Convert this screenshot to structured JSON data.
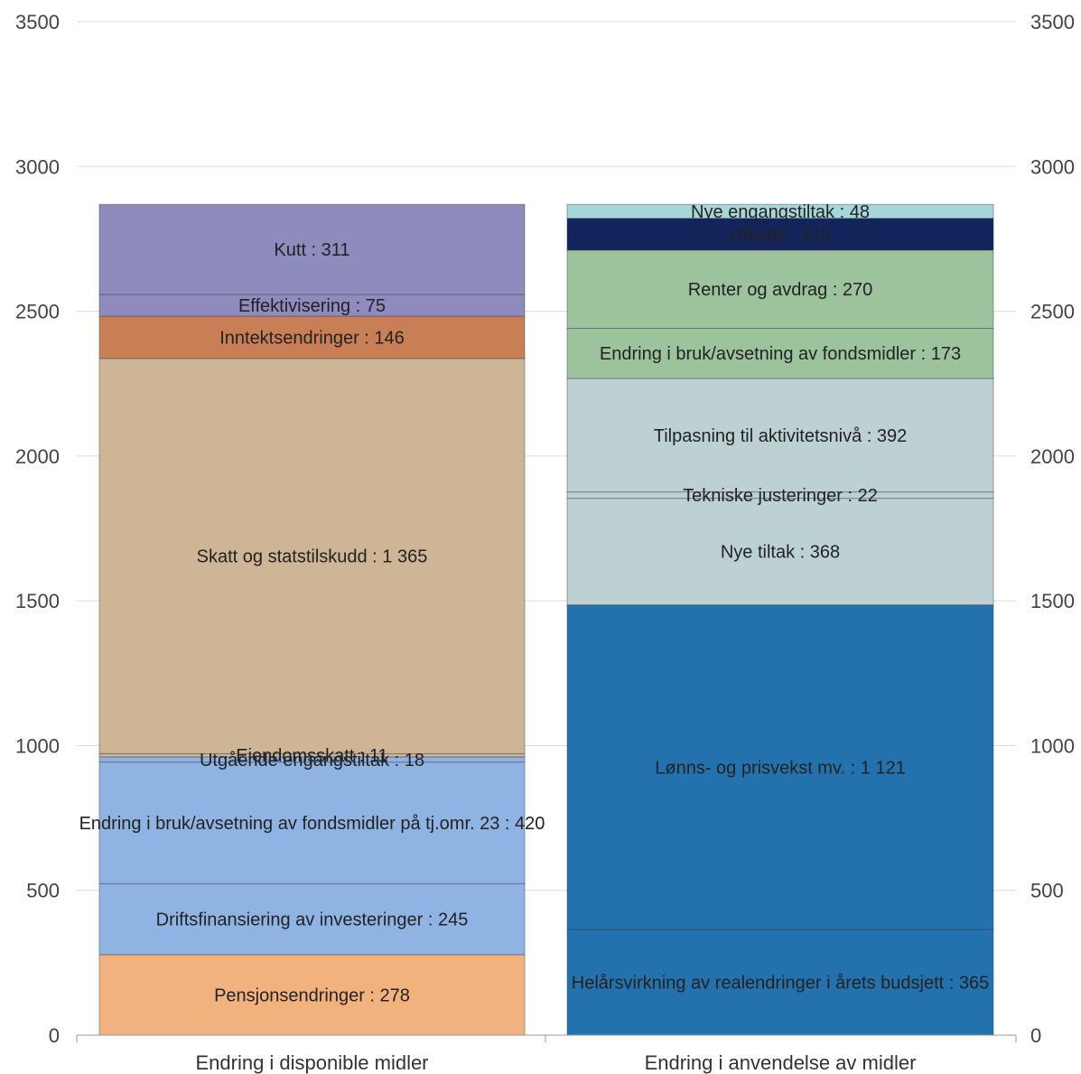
{
  "chart_data": {
    "type": "bar",
    "stacked": true,
    "ylim": [
      0,
      3500
    ],
    "yticks": [
      0,
      500,
      1000,
      1500,
      2000,
      2500,
      3000,
      3500
    ],
    "yaxis_left": true,
    "yaxis_right": true,
    "grid": true,
    "categories": [
      "Endring i disponible midler",
      "Endring i anvendelse av midler"
    ],
    "stacks": [
      {
        "category": "Endring i disponible midler",
        "segments": [
          {
            "label": "Pensjonsendringer : 278",
            "value": 278,
            "color": "#f2b27e"
          },
          {
            "label": "Driftsfinansiering av investeringer : 245",
            "value": 245,
            "color": "#8fb4e3"
          },
          {
            "label": "Endring i bruk/avsetning av fondsmidler på tj.omr. 23 : 420",
            "value": 420,
            "color": "#8fb4e3"
          },
          {
            "label": "Utgående engangstiltak : 18",
            "value": 18,
            "color": "#8fb4e3"
          },
          {
            "label": "Eiendomsskatt : 11",
            "value": 11,
            "color": "#cdb596"
          },
          {
            "label": "Skatt og statstilskudd : 1 365",
            "value": 1365,
            "color": "#cdb596"
          },
          {
            "label": "Inntektsendringer : 146",
            "value": 146,
            "color": "#c97f56"
          },
          {
            "label": "Effektivisering : 75",
            "value": 75,
            "color": "#8e8bbd"
          },
          {
            "label": "Kutt : 311",
            "value": 311,
            "color": "#8e8bbd"
          }
        ]
      },
      {
        "category": "Endring i anvendelse av midler",
        "segments": [
          {
            "label": "Helårsvirkning av realendringer i årets budsjett : 365",
            "value": 365,
            "color": "#2472ad"
          },
          {
            "label": "Lønns- og prisvekst mv. : 1 121",
            "value": 1121,
            "color": "#2472ad"
          },
          {
            "label": "Nye tiltak : 368",
            "value": 368,
            "color": "#bdd1d2"
          },
          {
            "label": "Tekniske justeringer : 22",
            "value": 22,
            "color": "#bdd1d2"
          },
          {
            "label": "Tilpasning til aktivitetsnivå : 392",
            "value": 392,
            "color": "#bdd1d2"
          },
          {
            "label": "Endring i bruk/avsetning av fondsmidler : 173",
            "value": 173,
            "color": "#9cc39c"
          },
          {
            "label": "Renter og avdrag : 270",
            "value": 270,
            "color": "#9cc39c"
          },
          {
            "label": "Utbytte : 110",
            "value": 110,
            "color": "#13245a"
          },
          {
            "label": "Nye engangstiltak : 48",
            "value": 48,
            "color": "#a6d6d6"
          }
        ]
      }
    ]
  }
}
